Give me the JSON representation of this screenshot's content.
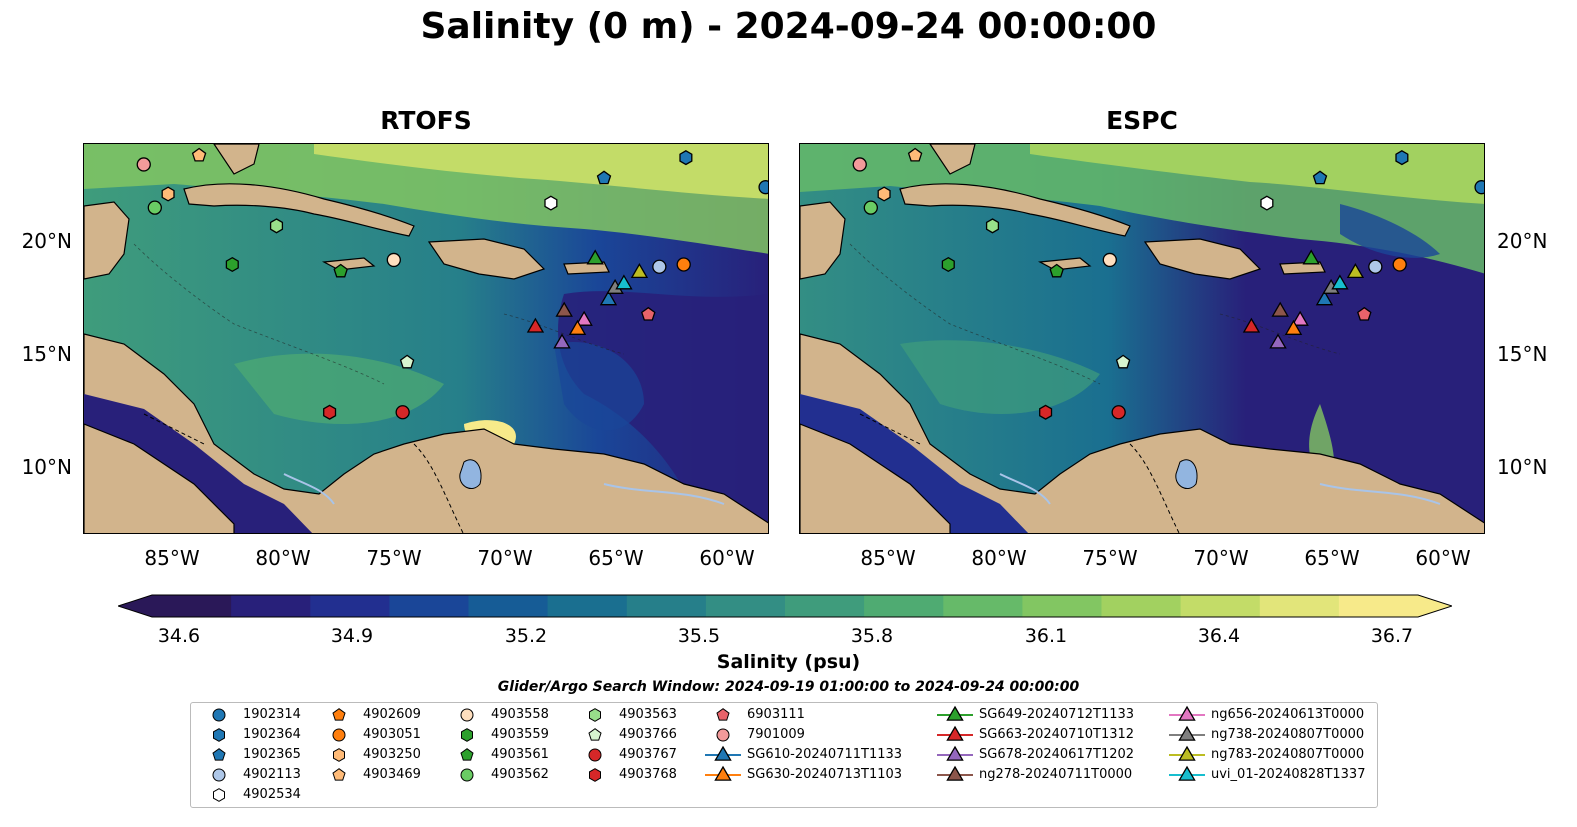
{
  "title": "Salinity (0 m) - 2024-09-24 00:00:00",
  "panels": [
    {
      "title": "RTOFS"
    },
    {
      "title": "ESPC"
    }
  ],
  "lon_ticks": [
    "85°W",
    "80°W",
    "75°W",
    "70°W",
    "65°W",
    "60°W"
  ],
  "lat_ticks": [
    "20°N",
    "15°N",
    "10°N"
  ],
  "colorbar": {
    "label": "Salinity (psu)",
    "ticks": [
      "34.6",
      "34.9",
      "35.2",
      "35.5",
      "35.8",
      "36.1",
      "36.4",
      "36.7"
    ],
    "min": 34.6,
    "max": 36.7,
    "colors": [
      "#2a1858",
      "#28207a",
      "#222f90",
      "#1a4698",
      "#165c96",
      "#1a6f90",
      "#267f8a",
      "#338e84",
      "#3f9c7c",
      "#4fab72",
      "#66ba69",
      "#82c662",
      "#a2d160",
      "#c3dc68",
      "#e2e57a",
      "#f7ea8a"
    ]
  },
  "search_window": "Glider/Argo Search Window: 2024-09-19 01:00:00 to 2024-09-24 00:00:00",
  "legend": {
    "columns": [
      [
        {
          "label": "1902314",
          "marker": "circle",
          "color": "#1f77b4"
        },
        {
          "label": "1902364",
          "marker": "hexagon",
          "color": "#1f77b4"
        },
        {
          "label": "1902365",
          "marker": "pentagon",
          "color": "#1f77b4"
        },
        {
          "label": "4902113",
          "marker": "circle",
          "color": "#aec7e8"
        },
        {
          "label": "4902534",
          "marker": "hexagon",
          "color": "#ffffff"
        }
      ],
      [
        {
          "label": "4902609",
          "marker": "pentagon",
          "color": "#ff7f0e"
        },
        {
          "label": "4903051",
          "marker": "circle",
          "color": "#ff7f0e"
        },
        {
          "label": "4903250",
          "marker": "hexagon",
          "color": "#ffbb78"
        },
        {
          "label": "4903469",
          "marker": "pentagon",
          "color": "#ffbb78"
        }
      ],
      [
        {
          "label": "4903558",
          "marker": "circle",
          "color": "#ffdfbf"
        },
        {
          "label": "4903559",
          "marker": "hexagon",
          "color": "#2ca02c"
        },
        {
          "label": "4903561",
          "marker": "pentagon",
          "color": "#2ca02c"
        },
        {
          "label": "4903562",
          "marker": "circle",
          "color": "#6acc64"
        }
      ],
      [
        {
          "label": "4903563",
          "marker": "hexagon",
          "color": "#98df8a"
        },
        {
          "label": "4903766",
          "marker": "pentagon",
          "color": "#d7f5cf"
        },
        {
          "label": "4903767",
          "marker": "circle",
          "color": "#d62728"
        },
        {
          "label": "4903768",
          "marker": "hexagon",
          "color": "#d62728"
        }
      ],
      [
        {
          "label": "6903111",
          "marker": "pentagon",
          "color": "#e8636a"
        },
        {
          "label": "7901009",
          "marker": "circle",
          "color": "#f29a9a"
        },
        {
          "label": "SG610-20240711T1133",
          "marker": "triangle",
          "color": "#1f77b4"
        },
        {
          "label": "SG630-20240713T1103",
          "marker": "triangle",
          "color": "#ff7f0e"
        }
      ],
      [
        {
          "label": "SG649-20240712T1133",
          "marker": "triangle",
          "color": "#2ca02c"
        },
        {
          "label": "SG663-20240710T1312",
          "marker": "triangle",
          "color": "#d62728"
        },
        {
          "label": "SG678-20240617T1202",
          "marker": "triangle",
          "color": "#9467bd"
        },
        {
          "label": "ng278-20240711T0000",
          "marker": "triangle",
          "color": "#8c564b"
        }
      ],
      [
        {
          "label": "ng656-20240613T0000",
          "marker": "triangle",
          "color": "#e377c2"
        },
        {
          "label": "ng738-20240807T0000",
          "marker": "triangle",
          "color": "#7f7f7f"
        },
        {
          "label": "ng783-20240807T0000",
          "marker": "triangle",
          "color": "#bcbd22"
        },
        {
          "label": "uvi_01-20240828T1337",
          "marker": "triangle",
          "color": "#17becf"
        }
      ]
    ]
  },
  "map_colors": {
    "land": "#d2b48c",
    "river": "#a9c4e8",
    "lake": "#92b5e0"
  },
  "stations": [
    {
      "id": "7901009",
      "marker": "circle",
      "color": "#f29a9a",
      "lon": -86.3,
      "lat": 23.3
    },
    {
      "id": "4903469",
      "marker": "pentagon",
      "color": "#ffbb78",
      "lon": -83.8,
      "lat": 23.7
    },
    {
      "id": "4903250",
      "marker": "hexagon",
      "color": "#ffbb78",
      "lon": -85.2,
      "lat": 22.0
    },
    {
      "id": "4903562",
      "marker": "circle",
      "color": "#6acc64",
      "lon": -85.8,
      "lat": 21.4
    },
    {
      "id": "4903563",
      "marker": "hexagon",
      "color": "#98df8a",
      "lon": -80.3,
      "lat": 20.6
    },
    {
      "id": "4903559",
      "marker": "hexagon",
      "color": "#2ca02c",
      "lon": -82.3,
      "lat": 18.9
    },
    {
      "id": "4903561",
      "marker": "pentagon",
      "color": "#2ca02c",
      "lon": -77.4,
      "lat": 18.6
    },
    {
      "id": "4903558",
      "marker": "circle",
      "color": "#ffdfbf",
      "lon": -75.0,
      "lat": 19.1
    },
    {
      "id": "4902534",
      "marker": "hexagon",
      "color": "#ffffff",
      "lon": -67.9,
      "lat": 21.6
    },
    {
      "id": "1902365",
      "marker": "pentagon",
      "color": "#1f77b4",
      "lon": -65.5,
      "lat": 22.7
    },
    {
      "id": "1902364",
      "marker": "hexagon",
      "color": "#1f77b4",
      "lon": -61.8,
      "lat": 23.6
    },
    {
      "id": "1902314",
      "marker": "circle",
      "color": "#1f77b4",
      "lon": -58.2,
      "lat": 22.3
    },
    {
      "id": "4903051",
      "marker": "circle",
      "color": "#ff7f0e",
      "lon": -61.9,
      "lat": 18.9
    },
    {
      "id": "4903766",
      "marker": "pentagon",
      "color": "#d7f5cf",
      "lon": -74.4,
      "lat": 14.6
    },
    {
      "id": "4903768",
      "marker": "hexagon",
      "color": "#d62728",
      "lon": -77.9,
      "lat": 12.4
    },
    {
      "id": "4903767",
      "marker": "circle",
      "color": "#d62728",
      "lon": -74.6,
      "lat": 12.4
    },
    {
      "id": "6903111",
      "marker": "pentagon",
      "color": "#e8636a",
      "lon": -63.5,
      "lat": 16.7
    },
    {
      "id": "4902113",
      "marker": "circle",
      "color": "#aec7e8",
      "lon": -63.0,
      "lat": 18.8
    },
    {
      "id": "SG649-20240712T1133",
      "marker": "triangle",
      "color": "#2ca02c",
      "lon": -65.9,
      "lat": 19.2
    },
    {
      "id": "SG663-20240710T1312",
      "marker": "triangle",
      "color": "#d62728",
      "lon": -68.6,
      "lat": 16.2
    },
    {
      "id": "SG678-20240617T1202",
      "marker": "triangle",
      "color": "#9467bd",
      "lon": -67.4,
      "lat": 15.5
    },
    {
      "id": "ng278-20240711T0000",
      "marker": "triangle",
      "color": "#8c564b",
      "lon": -67.3,
      "lat": 16.9
    },
    {
      "id": "ng656-20240613T0000",
      "marker": "triangle",
      "color": "#e377c2",
      "lon": -66.4,
      "lat": 16.5
    },
    {
      "id": "SG630-20240713T1103",
      "marker": "triangle",
      "color": "#ff7f0e",
      "lon": -66.7,
      "lat": 16.1
    },
    {
      "id": "SG610-20240711T1133",
      "marker": "triangle",
      "color": "#1f77b4",
      "lon": -65.3,
      "lat": 17.4
    },
    {
      "id": "ng738-20240807T0000",
      "marker": "triangle",
      "color": "#7f7f7f",
      "lon": -65.0,
      "lat": 17.9
    },
    {
      "id": "uvi_01-20240828T1337",
      "marker": "triangle",
      "color": "#17becf",
      "lon": -64.6,
      "lat": 18.1
    },
    {
      "id": "ng783-20240807T0000",
      "marker": "triangle",
      "color": "#bcbd22",
      "lon": -63.9,
      "lat": 18.6
    }
  ]
}
